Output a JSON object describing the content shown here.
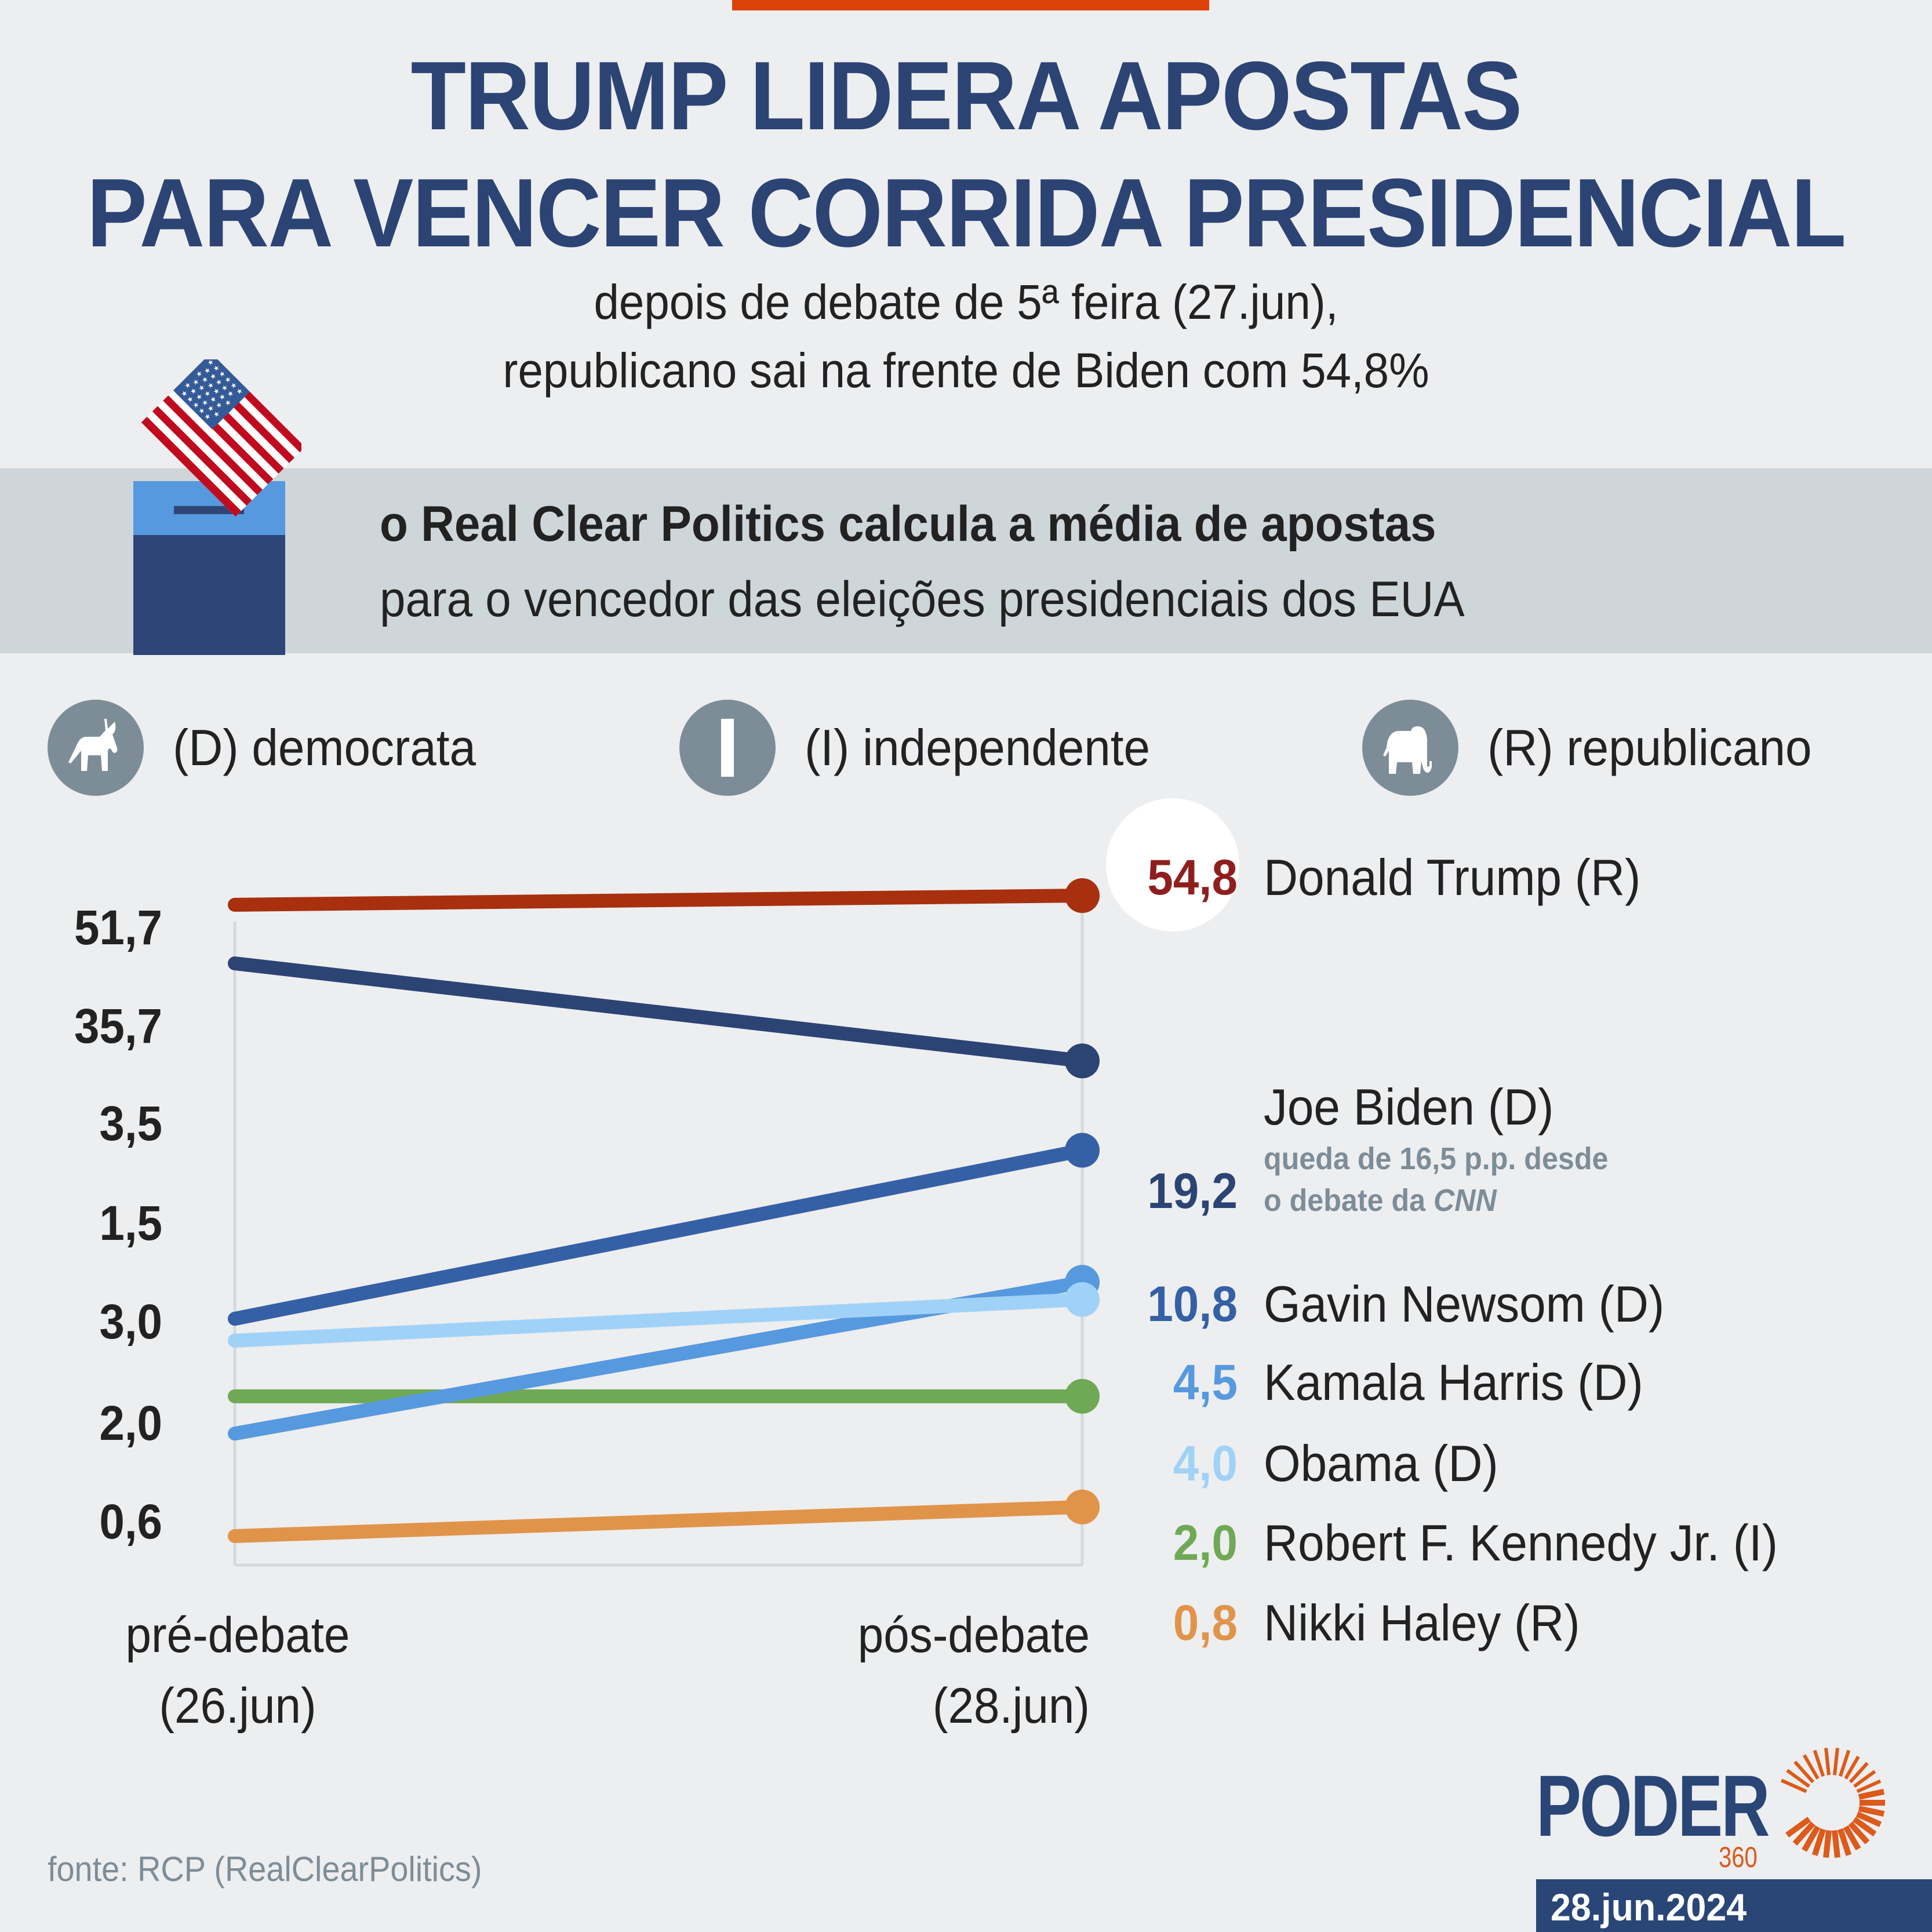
{
  "header": {
    "title_line1": "TRUMP LIDERA APOSTAS",
    "title_line2": "PARA VENCER CORRIDA PRESIDENCIAL",
    "subtitle_line1": "depois de debate de 5ª feira (27.jun),",
    "subtitle_line2": "republicano sai na frente de Biden com 54,8%"
  },
  "info_band": {
    "line1": "o Real Clear Politics calcula a média de apostas",
    "line2": "para o vencedor das eleições presidenciais dos EUA",
    "icon": "ballot-box-flag-icon"
  },
  "legend": [
    {
      "label": "(D) democrata",
      "icon": "donkey-icon"
    },
    {
      "label": "(I) independente",
      "icon": "independent-i-icon"
    },
    {
      "label": "(R) republicano",
      "icon": "elephant-icon"
    }
  ],
  "colors": {
    "accent_orange": "#dc4108",
    "title_navy": "#2c4474",
    "trump": "#a8300f",
    "trump_label": "#8f1f1f",
    "biden": "#2c4474",
    "newsom": "#3560a5",
    "harris": "#5799de",
    "obama": "#a0d2f7",
    "kennedy": "#6fa955",
    "haley": "#e0944a"
  },
  "chart_data": {
    "type": "line",
    "title": "TRUMP LIDERA APOSTAS PARA VENCER CORRIDA PRESIDENCIAL",
    "x": [
      "pré-debate (26.jun)",
      "pós-debate (28.jun)"
    ],
    "xlabels": [
      {
        "line1": "pré-debate",
        "line2": "(26.jun)"
      },
      {
        "line1": "pós-debate",
        "line2": "(28.jun)"
      }
    ],
    "ylabel": "",
    "unit": "%",
    "grid": false,
    "left_labels": [
      "51,7",
      "35,7",
      "3,5",
      "1,5",
      "3,0",
      "2,0",
      "0,6"
    ],
    "series": [
      {
        "name": "Donald Trump (R)",
        "party": "R",
        "values": [
          51.7,
          54.8
        ],
        "label": "54,8",
        "color": "#a8300f",
        "label_color": "#8f1f1f"
      },
      {
        "name": "Joe Biden (D)",
        "party": "D",
        "values": [
          35.7,
          19.2
        ],
        "label": "19,2",
        "color": "#2c4474",
        "label_color": "#2c4474",
        "note_line1": "queda de 16,5 p.p. desde",
        "note_line2_prefix": "o debate da ",
        "note_line2_em": "CNN"
      },
      {
        "name": "Gavin Newsom (D)",
        "party": "D",
        "values": [
          3.5,
          10.8
        ],
        "label": "10,8",
        "color": "#3560a5",
        "label_color": "#3560a5"
      },
      {
        "name": "Kamala Harris (D)",
        "party": "D",
        "values": [
          1.5,
          4.5
        ],
        "label": "4,5",
        "color": "#5799de",
        "label_color": "#5799de"
      },
      {
        "name": "Obama (D)",
        "party": "D",
        "values": [
          3.0,
          4.0
        ],
        "label": "4,0",
        "color": "#a0d2f7",
        "label_color": "#a0d2f7"
      },
      {
        "name": "Robert F. Kennedy Jr. (I)",
        "party": "I",
        "values": [
          2.0,
          2.0
        ],
        "label": "2,0",
        "color": "#6fa955",
        "label_color": "#6fa955"
      },
      {
        "name": "Nikki Haley (R)",
        "party": "R",
        "values": [
          0.6,
          0.8
        ],
        "label": "0,8",
        "color": "#e0944a",
        "label_color": "#e0944a"
      }
    ]
  },
  "footer": {
    "source": "fonte: RCP (RealClearPolitics)",
    "brand": "PODER",
    "brand_sub": "360",
    "date": "28.jun.2024"
  }
}
